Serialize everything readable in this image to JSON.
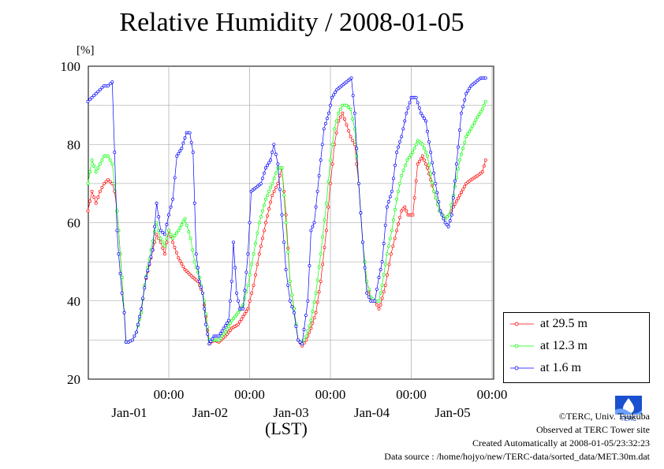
{
  "title": "Relative Humidity / 2008-01-05",
  "unit_label": "[%]",
  "x_axis_label": "(LST)",
  "footer": {
    "copyright": "©TERC, Univ. Tsukuba",
    "site": "Observed at TERC Tower site",
    "created": "Created Automatically at 2008-01-05/23:32:23",
    "source": "Data source : /home/hojyo/new/TERC-data/sorted_data/MET.30m.dat",
    "logo_text": "TERC"
  },
  "chart_data": {
    "type": "line",
    "title": "Relative Humidity / 2008-01-05",
    "ylabel": "[%]",
    "xlabel": "(LST)",
    "ylim": [
      20,
      100
    ],
    "yticks": [
      20,
      40,
      60,
      80,
      100
    ],
    "xlim_days": [
      0,
      5
    ],
    "x_start_note": "Jan 01 00:00 minus 1 day",
    "x_ticks": [
      {
        "time": "00:00",
        "date": "Jan-01"
      },
      {
        "time": "00:00",
        "date": "Jan-02"
      },
      {
        "time": "00:00",
        "date": "Jan-03"
      },
      {
        "time": "00:00",
        "date": "Jan-04"
      },
      {
        "time": "00:00",
        "date": "Jan-05"
      }
    ],
    "grid": true,
    "legend_position": "bottom-right",
    "series": [
      {
        "name": "at 29.5 m",
        "color": "#ff0000",
        "points": [
          [
            0,
            63
          ],
          [
            0.05,
            68
          ],
          [
            0.1,
            65
          ],
          [
            0.15,
            68
          ],
          [
            0.2,
            70
          ],
          [
            0.25,
            71
          ],
          [
            0.3,
            70
          ],
          [
            0.33,
            68
          ],
          [
            0.36,
            63
          ],
          [
            0.38,
            58
          ],
          [
            0.42,
            46
          ],
          [
            0.45,
            37
          ],
          [
            0.47,
            29.5
          ],
          [
            0.5,
            29.5
          ],
          [
            0.55,
            30
          ],
          [
            0.6,
            32
          ],
          [
            0.66,
            37
          ],
          [
            0.7,
            44
          ],
          [
            0.78,
            51
          ],
          [
            0.85,
            57
          ],
          [
            0.9,
            55
          ],
          [
            0.95,
            52
          ],
          [
            1.0,
            58
          ],
          [
            1.05,
            55
          ],
          [
            1.12,
            51
          ],
          [
            1.2,
            48
          ],
          [
            1.3,
            46
          ],
          [
            1.36,
            45
          ],
          [
            1.42,
            42
          ],
          [
            1.46,
            36
          ],
          [
            1.5,
            29
          ],
          [
            1.56,
            30
          ],
          [
            1.62,
            29.5
          ],
          [
            1.7,
            31
          ],
          [
            1.78,
            33
          ],
          [
            1.86,
            34
          ],
          [
            1.92,
            36
          ],
          [
            1.98,
            38
          ],
          [
            2.05,
            44
          ],
          [
            2.12,
            52
          ],
          [
            2.2,
            60
          ],
          [
            2.28,
            67
          ],
          [
            2.35,
            70
          ],
          [
            2.4,
            74
          ],
          [
            2.45,
            62
          ],
          [
            2.5,
            45
          ],
          [
            2.55,
            38
          ],
          [
            2.6,
            30
          ],
          [
            2.65,
            28.5
          ],
          [
            2.7,
            30
          ],
          [
            2.76,
            33
          ],
          [
            2.82,
            37
          ],
          [
            2.88,
            45
          ],
          [
            2.95,
            58
          ],
          [
            3.0,
            70
          ],
          [
            3.05,
            80
          ],
          [
            3.1,
            86
          ],
          [
            3.15,
            88
          ],
          [
            3.2,
            85
          ],
          [
            3.25,
            82
          ],
          [
            3.3,
            80
          ],
          [
            3.35,
            70
          ],
          [
            3.4,
            55
          ],
          [
            3.45,
            45
          ],
          [
            3.5,
            40
          ],
          [
            3.55,
            40
          ],
          [
            3.6,
            38
          ],
          [
            3.62,
            39
          ],
          [
            3.68,
            44
          ],
          [
            3.75,
            52
          ],
          [
            3.82,
            58
          ],
          [
            3.88,
            63
          ],
          [
            3.92,
            64
          ],
          [
            3.96,
            62
          ],
          [
            4.02,
            62
          ],
          [
            4.08,
            75
          ],
          [
            4.14,
            77
          ],
          [
            4.2,
            74
          ],
          [
            4.28,
            68
          ],
          [
            4.35,
            63
          ],
          [
            4.42,
            61
          ],
          [
            4.47,
            62
          ],
          [
            4.52,
            64
          ],
          [
            4.6,
            67
          ],
          [
            4.68,
            70
          ],
          [
            4.74,
            71
          ],
          [
            4.82,
            72
          ],
          [
            4.88,
            73
          ],
          [
            4.92,
            76
          ]
        ]
      },
      {
        "name": "at 12.3 m",
        "color": "#00ff00",
        "points": [
          [
            0,
            70
          ],
          [
            0.05,
            76
          ],
          [
            0.1,
            73
          ],
          [
            0.15,
            75
          ],
          [
            0.2,
            77
          ],
          [
            0.25,
            77
          ],
          [
            0.3,
            75
          ],
          [
            0.33,
            70
          ],
          [
            0.36,
            63
          ],
          [
            0.38,
            58
          ],
          [
            0.42,
            46
          ],
          [
            0.45,
            37
          ],
          [
            0.47,
            29.5
          ],
          [
            0.5,
            29.5
          ],
          [
            0.55,
            30
          ],
          [
            0.6,
            32
          ],
          [
            0.66,
            37
          ],
          [
            0.7,
            44
          ],
          [
            0.78,
            53
          ],
          [
            0.85,
            60
          ],
          [
            0.9,
            56
          ],
          [
            0.95,
            54
          ],
          [
            1.0,
            58
          ],
          [
            1.05,
            56
          ],
          [
            1.12,
            58
          ],
          [
            1.2,
            61
          ],
          [
            1.27,
            56
          ],
          [
            1.32,
            50
          ],
          [
            1.38,
            46
          ],
          [
            1.44,
            40
          ],
          [
            1.5,
            30
          ],
          [
            1.56,
            30
          ],
          [
            1.62,
            30
          ],
          [
            1.7,
            32
          ],
          [
            1.78,
            35
          ],
          [
            1.86,
            37
          ],
          [
            1.92,
            39
          ],
          [
            1.98,
            44
          ],
          [
            2.05,
            52
          ],
          [
            2.12,
            60
          ],
          [
            2.2,
            66
          ],
          [
            2.28,
            70
          ],
          [
            2.35,
            74
          ],
          [
            2.4,
            74
          ],
          [
            2.45,
            60
          ],
          [
            2.5,
            45
          ],
          [
            2.55,
            38
          ],
          [
            2.6,
            30
          ],
          [
            2.65,
            29
          ],
          [
            2.7,
            31
          ],
          [
            2.76,
            35
          ],
          [
            2.82,
            42
          ],
          [
            2.88,
            52
          ],
          [
            2.95,
            65
          ],
          [
            3.0,
            76
          ],
          [
            3.05,
            84
          ],
          [
            3.1,
            88
          ],
          [
            3.15,
            90
          ],
          [
            3.2,
            90
          ],
          [
            3.25,
            89
          ],
          [
            3.3,
            84
          ],
          [
            3.35,
            70
          ],
          [
            3.4,
            55
          ],
          [
            3.45,
            45
          ],
          [
            3.5,
            41
          ],
          [
            3.55,
            40
          ],
          [
            3.6,
            40
          ],
          [
            3.64,
            44
          ],
          [
            3.7,
            52
          ],
          [
            3.76,
            58
          ],
          [
            3.82,
            66
          ],
          [
            3.88,
            72
          ],
          [
            3.95,
            76
          ],
          [
            4.02,
            78
          ],
          [
            4.08,
            81
          ],
          [
            4.14,
            80
          ],
          [
            4.2,
            77
          ],
          [
            4.28,
            68
          ],
          [
            4.35,
            63
          ],
          [
            4.42,
            61
          ],
          [
            4.47,
            62
          ],
          [
            4.52,
            67
          ],
          [
            4.6,
            76
          ],
          [
            4.68,
            82
          ],
          [
            4.74,
            84
          ],
          [
            4.82,
            87
          ],
          [
            4.88,
            89
          ],
          [
            4.92,
            91
          ]
        ]
      },
      {
        "name": "at 1.6 m",
        "color": "#0000ff",
        "points": [
          [
            0,
            91
          ],
          [
            0.05,
            92
          ],
          [
            0.1,
            93
          ],
          [
            0.15,
            94
          ],
          [
            0.2,
            95
          ],
          [
            0.25,
            95
          ],
          [
            0.3,
            96
          ],
          [
            0.33,
            78
          ],
          [
            0.36,
            58
          ],
          [
            0.38,
            52
          ],
          [
            0.42,
            42
          ],
          [
            0.45,
            37
          ],
          [
            0.47,
            29.5
          ],
          [
            0.5,
            29.5
          ],
          [
            0.55,
            30
          ],
          [
            0.6,
            32
          ],
          [
            0.66,
            38
          ],
          [
            0.72,
            46
          ],
          [
            0.8,
            53
          ],
          [
            0.85,
            65
          ],
          [
            0.9,
            58
          ],
          [
            0.95,
            57
          ],
          [
            1.0,
            62
          ],
          [
            1.05,
            66
          ],
          [
            1.1,
            77
          ],
          [
            1.16,
            79
          ],
          [
            1.22,
            83
          ],
          [
            1.26,
            83
          ],
          [
            1.3,
            78
          ],
          [
            1.34,
            52
          ],
          [
            1.38,
            45
          ],
          [
            1.42,
            42
          ],
          [
            1.46,
            34
          ],
          [
            1.5,
            29
          ],
          [
            1.56,
            31
          ],
          [
            1.62,
            31
          ],
          [
            1.68,
            33
          ],
          [
            1.74,
            35
          ],
          [
            1.78,
            45
          ],
          [
            1.8,
            55
          ],
          [
            1.84,
            42
          ],
          [
            1.88,
            38
          ],
          [
            1.92,
            38
          ],
          [
            1.98,
            52
          ],
          [
            2.02,
            68
          ],
          [
            2.08,
            69
          ],
          [
            2.14,
            70
          ],
          [
            2.2,
            74
          ],
          [
            2.26,
            76
          ],
          [
            2.3,
            80
          ],
          [
            2.35,
            75
          ],
          [
            2.4,
            62
          ],
          [
            2.45,
            48
          ],
          [
            2.5,
            40
          ],
          [
            2.55,
            37
          ],
          [
            2.6,
            30
          ],
          [
            2.65,
            29
          ],
          [
            2.72,
            40
          ],
          [
            2.76,
            58
          ],
          [
            2.8,
            60
          ],
          [
            2.86,
            72
          ],
          [
            2.92,
            84
          ],
          [
            2.98,
            88
          ],
          [
            3.02,
            92
          ],
          [
            3.08,
            94
          ],
          [
            3.14,
            95
          ],
          [
            3.2,
            96
          ],
          [
            3.26,
            97
          ],
          [
            3.3,
            88
          ],
          [
            3.35,
            70
          ],
          [
            3.4,
            55
          ],
          [
            3.45,
            42
          ],
          [
            3.5,
            40
          ],
          [
            3.55,
            40
          ],
          [
            3.6,
            46
          ],
          [
            3.64,
            50
          ],
          [
            3.7,
            64
          ],
          [
            3.76,
            68
          ],
          [
            3.82,
            78
          ],
          [
            3.88,
            82
          ],
          [
            3.94,
            88
          ],
          [
            4.0,
            92
          ],
          [
            4.06,
            92
          ],
          [
            4.12,
            88
          ],
          [
            4.18,
            86
          ],
          [
            4.24,
            78
          ],
          [
            4.3,
            70
          ],
          [
            4.36,
            63
          ],
          [
            4.42,
            60
          ],
          [
            4.46,
            59
          ],
          [
            4.5,
            62
          ],
          [
            4.56,
            75
          ],
          [
            4.62,
            88
          ],
          [
            4.68,
            93
          ],
          [
            4.74,
            95
          ],
          [
            4.8,
            96
          ],
          [
            4.86,
            97
          ],
          [
            4.92,
            97
          ]
        ]
      }
    ]
  }
}
